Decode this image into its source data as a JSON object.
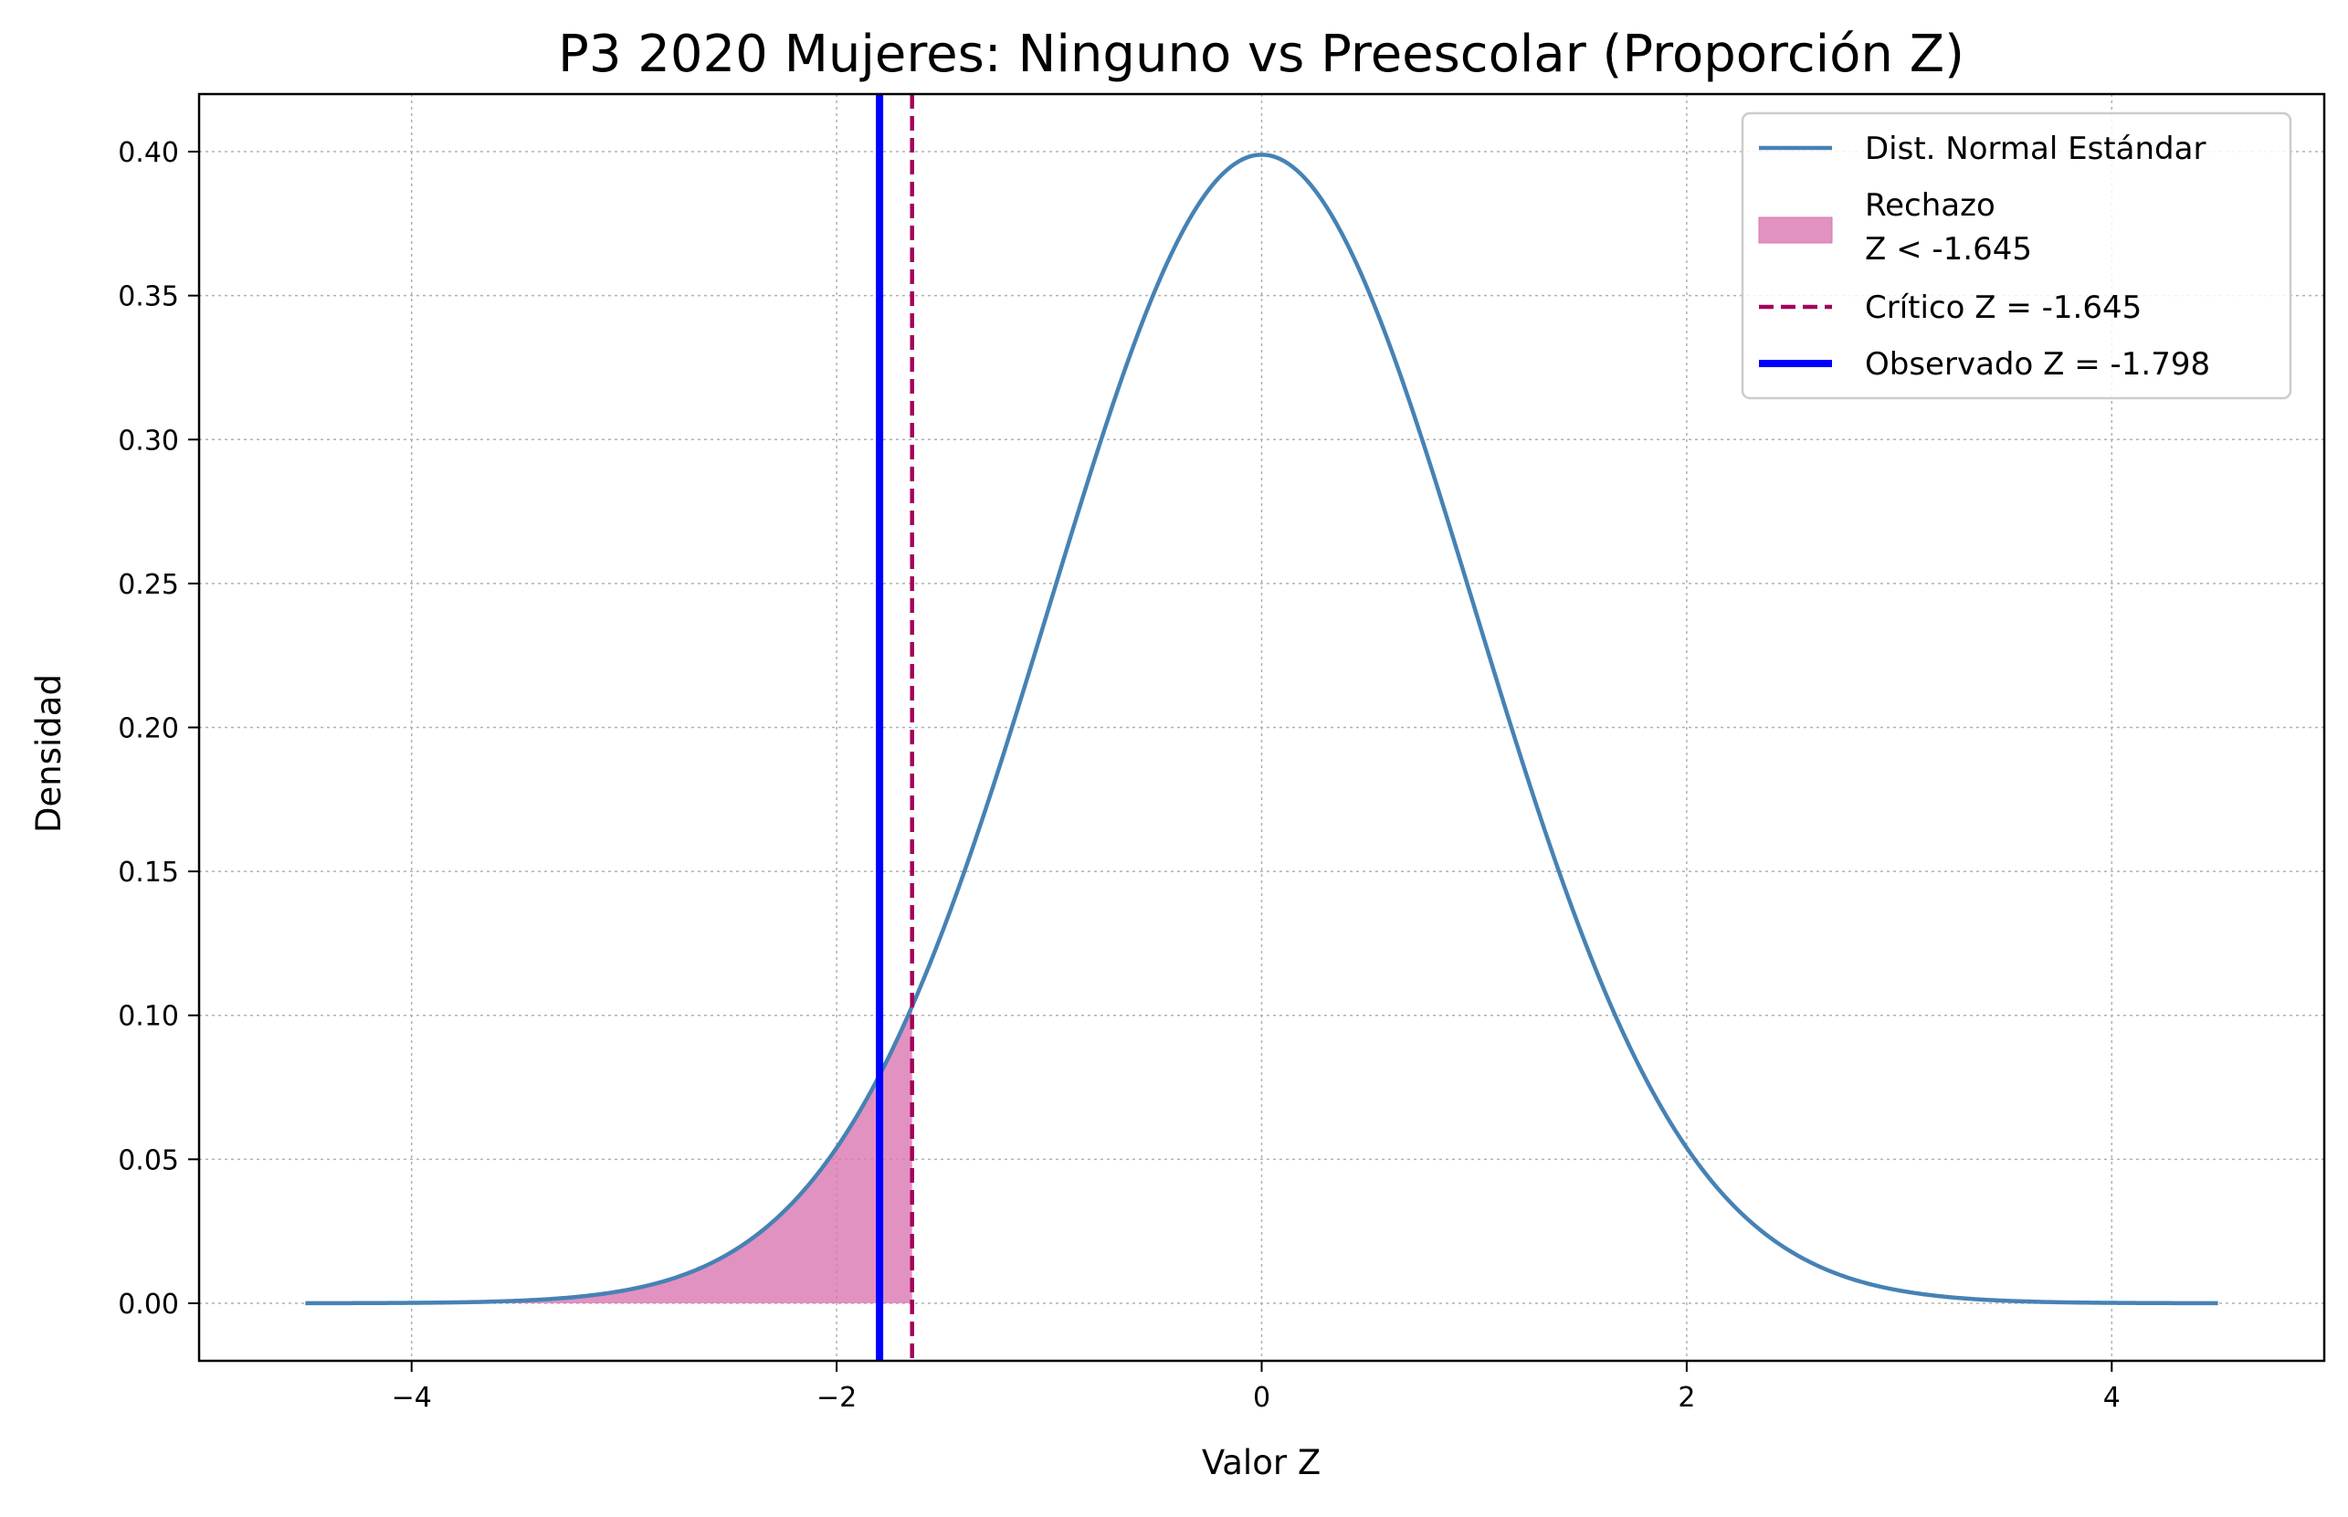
{
  "chart_data": {
    "type": "line",
    "title": "P3 2020 Mujeres: Ninguno vs Preescolar (Proporción Z)",
    "xlabel": "Valor Z",
    "ylabel": "Densidad",
    "xlim": [
      -5,
      5
    ],
    "ylim": [
      -0.02,
      0.42
    ],
    "x_ticks": [
      -4,
      -2,
      0,
      2,
      4
    ],
    "x_tick_labels": [
      "−4",
      "−2",
      "0",
      "2",
      "4"
    ],
    "y_ticks": [
      0.0,
      0.05,
      0.1,
      0.15,
      0.2,
      0.25,
      0.3,
      0.35,
      0.4
    ],
    "y_tick_labels": [
      "0.00",
      "0.05",
      "0.10",
      "0.15",
      "0.20",
      "0.25",
      "0.30",
      "0.35",
      "0.40"
    ],
    "grid": true,
    "legend_position": "top-right",
    "curve": {
      "name": "Dist. Normal Estándar",
      "distribution": "standard normal",
      "x_range": [
        -4.5,
        4.5
      ],
      "peak": 0.399,
      "color": "#4682b4"
    },
    "rejection_region": {
      "name": "Rechazo",
      "label_line2": "Z < -1.645",
      "upper_z": -1.645,
      "color": "#d977b1"
    },
    "critical_line": {
      "name": "Crítico Z = -1.645",
      "z": -1.645,
      "color": "#a3005b",
      "style": "dashed"
    },
    "observed_line": {
      "name": "Observado Z = -1.798",
      "z": -1.798,
      "color": "#0000ff",
      "style": "solid"
    }
  }
}
